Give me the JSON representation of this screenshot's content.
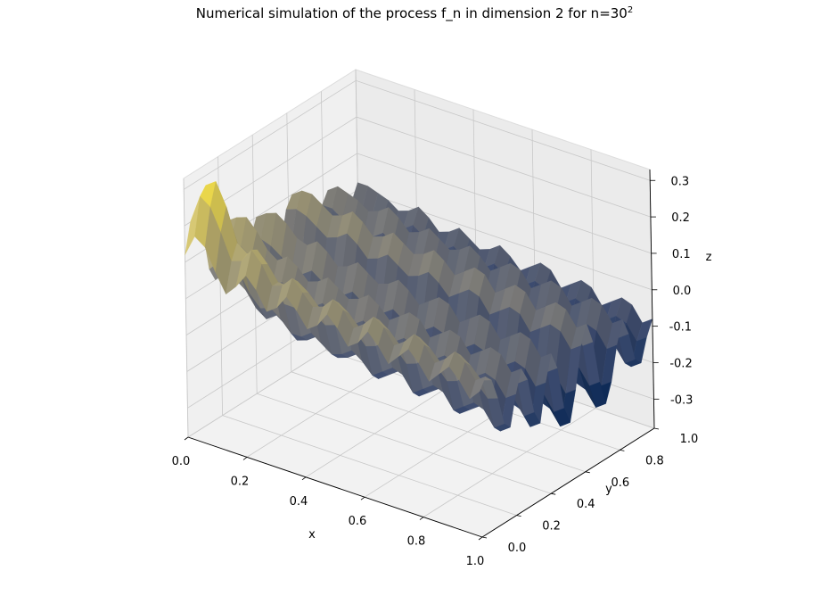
{
  "chart_data": {
    "type": "surface3d",
    "title": "Numerical simulation of the process f_n in dimension 2 for n=30",
    "title_superscript": "2",
    "xlabel": "x",
    "ylabel": "y",
    "zlabel": "z",
    "xlim": [
      0.0,
      1.0
    ],
    "ylim": [
      0.0,
      1.0
    ],
    "zlim": [
      -0.38,
      0.33
    ],
    "xticks": [
      "0.0",
      "0.2",
      "0.4",
      "0.6",
      "0.8",
      "1.0"
    ],
    "yticks": [
      "0.0",
      "0.2",
      "0.4",
      "0.6",
      "0.8",
      "1.0"
    ],
    "zticks": [
      "-0.3",
      "-0.2",
      "-0.1",
      "0.0",
      "0.1",
      "0.2",
      "0.3"
    ],
    "xtick_values": [
      0.0,
      0.2,
      0.4,
      0.6,
      0.8,
      1.0
    ],
    "ytick_values": [
      0.0,
      0.2,
      0.4,
      0.6,
      0.8,
      1.0
    ],
    "ztick_values": [
      -0.3,
      -0.2,
      -0.1,
      0.0,
      0.1,
      0.2,
      0.3
    ],
    "colormap": "cividis",
    "colormap_stops": [
      "#00204d",
      "#3b496c",
      "#7c7b78",
      "#bcaf6f",
      "#ffe945"
    ],
    "grid": true,
    "pane_color": "#f2f2f2",
    "grid_size": 30,
    "z_values": [
      [
        0.12,
        0.2,
        0.23,
        0.16,
        0.04,
        0.0,
        0.08,
        0.14,
        0.09,
        -0.02,
        -0.05,
        0.05,
        0.1,
        0.04,
        -0.06,
        -0.09,
        -0.02,
        0.07,
        0.1,
        0.06,
        -0.04,
        -0.1,
        -0.06,
        0.02,
        0.05,
        0.0,
        -0.06,
        -0.07,
        -0.02,
        0.02
      ],
      [
        0.18,
        0.28,
        0.3,
        0.21,
        0.07,
        0.03,
        0.11,
        0.16,
        0.1,
        -0.02,
        -0.04,
        0.06,
        0.12,
        0.05,
        -0.07,
        -0.1,
        -0.02,
        0.08,
        0.12,
        0.05,
        -0.06,
        -0.13,
        -0.08,
        0.02,
        0.07,
        0.01,
        -0.07,
        -0.09,
        -0.03,
        0.02
      ],
      [
        0.16,
        0.26,
        0.32,
        0.24,
        0.08,
        0.02,
        0.1,
        0.17,
        0.12,
        -0.01,
        -0.05,
        0.05,
        0.13,
        0.07,
        -0.07,
        -0.12,
        -0.04,
        0.07,
        0.12,
        0.06,
        -0.07,
        -0.14,
        -0.09,
        0.0,
        0.06,
        0.01,
        -0.08,
        -0.1,
        -0.04,
        0.01
      ],
      [
        0.1,
        0.2,
        0.26,
        0.19,
        0.06,
        0.0,
        0.08,
        0.14,
        0.1,
        -0.02,
        -0.07,
        0.03,
        0.11,
        0.06,
        -0.08,
        -0.14,
        -0.06,
        0.05,
        0.1,
        0.04,
        -0.08,
        -0.15,
        -0.1,
        -0.01,
        0.05,
        0.0,
        -0.08,
        -0.1,
        -0.04,
        0.0
      ],
      [
        0.05,
        0.13,
        0.17,
        0.11,
        0.01,
        -0.04,
        0.04,
        0.1,
        0.06,
        -0.05,
        -0.1,
        0.0,
        0.08,
        0.03,
        -0.1,
        -0.16,
        -0.08,
        0.03,
        0.08,
        0.02,
        -0.1,
        -0.17,
        -0.12,
        -0.03,
        0.03,
        -0.02,
        -0.1,
        -0.12,
        -0.06,
        -0.02
      ],
      [
        0.08,
        0.14,
        0.15,
        0.08,
        -0.02,
        -0.06,
        0.02,
        0.08,
        0.04,
        -0.06,
        -0.1,
        0.0,
        0.07,
        0.02,
        -0.1,
        -0.15,
        -0.07,
        0.04,
        0.09,
        0.03,
        -0.09,
        -0.16,
        -0.11,
        -0.02,
        0.04,
        -0.01,
        -0.09,
        -0.11,
        -0.05,
        -0.01
      ],
      [
        0.12,
        0.18,
        0.17,
        0.09,
        -0.01,
        -0.04,
        0.04,
        0.1,
        0.06,
        -0.04,
        -0.08,
        0.02,
        0.09,
        0.04,
        -0.08,
        -0.13,
        -0.05,
        0.06,
        0.11,
        0.05,
        -0.07,
        -0.14,
        -0.09,
        0.0,
        0.06,
        0.01,
        -0.07,
        -0.09,
        -0.03,
        0.01
      ],
      [
        0.09,
        0.15,
        0.14,
        0.07,
        -0.03,
        -0.06,
        0.02,
        0.08,
        0.04,
        -0.06,
        -0.1,
        0.0,
        0.07,
        0.02,
        -0.1,
        -0.15,
        -0.07,
        0.04,
        0.09,
        0.03,
        -0.09,
        -0.16,
        -0.11,
        -0.02,
        0.04,
        -0.01,
        -0.09,
        -0.11,
        -0.05,
        -0.01
      ],
      [
        0.04,
        0.1,
        0.1,
        0.03,
        -0.06,
        -0.09,
        -0.01,
        0.05,
        0.01,
        -0.09,
        -0.13,
        -0.03,
        0.04,
        -0.01,
        -0.13,
        -0.18,
        -0.1,
        0.01,
        0.06,
        0.0,
        -0.12,
        -0.19,
        -0.14,
        -0.05,
        0.01,
        -0.04,
        -0.12,
        -0.14,
        -0.08,
        -0.04
      ],
      [
        0.06,
        0.11,
        0.1,
        0.03,
        -0.06,
        -0.08,
        0.0,
        0.06,
        0.02,
        -0.08,
        -0.12,
        -0.02,
        0.05,
        0.0,
        -0.12,
        -0.17,
        -0.09,
        0.02,
        0.07,
        0.01,
        -0.11,
        -0.18,
        -0.13,
        -0.04,
        0.02,
        -0.03,
        -0.11,
        -0.13,
        -0.07,
        -0.03
      ],
      [
        0.1,
        0.14,
        0.12,
        0.05,
        -0.04,
        -0.06,
        0.02,
        0.08,
        0.04,
        -0.06,
        -0.1,
        0.0,
        0.07,
        0.02,
        -0.1,
        -0.15,
        -0.07,
        0.04,
        0.09,
        0.03,
        -0.09,
        -0.16,
        -0.11,
        -0.02,
        0.04,
        -0.01,
        -0.09,
        -0.11,
        -0.05,
        -0.01
      ],
      [
        0.07,
        0.11,
        0.1,
        0.03,
        -0.06,
        -0.08,
        0.0,
        0.06,
        0.02,
        -0.08,
        -0.12,
        -0.02,
        0.05,
        0.0,
        -0.12,
        -0.17,
        -0.09,
        0.02,
        0.07,
        0.01,
        -0.11,
        -0.18,
        -0.13,
        -0.04,
        0.02,
        -0.03,
        -0.11,
        -0.13,
        -0.07,
        -0.03
      ],
      [
        0.03,
        0.08,
        0.07,
        0.01,
        -0.08,
        -0.1,
        -0.02,
        0.04,
        0.0,
        -0.1,
        -0.14,
        -0.04,
        0.03,
        -0.02,
        -0.14,
        -0.19,
        -0.11,
        0.0,
        0.05,
        -0.01,
        -0.13,
        -0.2,
        -0.15,
        -0.06,
        0.0,
        -0.05,
        -0.13,
        -0.15,
        -0.09,
        -0.05
      ],
      [
        0.05,
        0.09,
        0.08,
        0.02,
        -0.07,
        -0.09,
        -0.01,
        0.05,
        0.01,
        -0.09,
        -0.13,
        -0.03,
        0.04,
        -0.01,
        -0.13,
        -0.18,
        -0.1,
        0.01,
        0.06,
        0.0,
        -0.12,
        -0.19,
        -0.14,
        -0.05,
        0.01,
        -0.04,
        -0.12,
        -0.14,
        -0.08,
        -0.04
      ],
      [
        0.09,
        0.12,
        0.1,
        0.04,
        -0.05,
        -0.07,
        0.01,
        0.07,
        0.03,
        -0.07,
        -0.11,
        -0.01,
        0.06,
        0.01,
        -0.11,
        -0.16,
        -0.08,
        0.03,
        0.08,
        0.02,
        -0.1,
        -0.17,
        -0.12,
        -0.03,
        0.03,
        -0.02,
        -0.1,
        -0.12,
        -0.06,
        -0.02
      ],
      [
        0.06,
        0.1,
        0.08,
        0.02,
        -0.07,
        -0.09,
        -0.01,
        0.05,
        0.01,
        -0.09,
        -0.13,
        -0.03,
        0.04,
        -0.01,
        -0.13,
        -0.18,
        -0.1,
        0.01,
        0.06,
        0.0,
        -0.12,
        -0.19,
        -0.14,
        -0.05,
        0.01,
        -0.04,
        -0.12,
        -0.14,
        -0.08,
        -0.04
      ],
      [
        0.02,
        0.06,
        0.05,
        -0.01,
        -0.1,
        -0.12,
        -0.04,
        0.02,
        -0.02,
        -0.12,
        -0.16,
        -0.06,
        0.01,
        -0.04,
        -0.16,
        -0.21,
        -0.13,
        -0.02,
        0.03,
        -0.03,
        -0.15,
        -0.22,
        -0.17,
        -0.08,
        -0.02,
        -0.07,
        -0.15,
        -0.17,
        -0.11,
        -0.07
      ],
      [
        0.04,
        0.08,
        0.06,
        0.0,
        -0.08,
        -0.1,
        -0.02,
        0.04,
        0.0,
        -0.1,
        -0.14,
        -0.04,
        0.03,
        -0.02,
        -0.14,
        -0.19,
        -0.11,
        0.0,
        0.05,
        -0.01,
        -0.13,
        -0.2,
        -0.15,
        -0.06,
        0.0,
        -0.05,
        -0.13,
        -0.15,
        -0.09,
        -0.05
      ],
      [
        0.08,
        0.11,
        0.09,
        0.03,
        -0.06,
        -0.08,
        0.0,
        0.06,
        0.02,
        -0.08,
        -0.12,
        -0.02,
        0.05,
        0.0,
        -0.12,
        -0.17,
        -0.09,
        0.02,
        0.07,
        0.01,
        -0.11,
        -0.18,
        -0.13,
        -0.04,
        0.02,
        -0.03,
        -0.11,
        -0.13,
        -0.07,
        -0.03
      ],
      [
        0.05,
        0.09,
        0.07,
        0.01,
        -0.07,
        -0.09,
        -0.01,
        0.05,
        0.01,
        -0.09,
        -0.13,
        -0.03,
        0.04,
        -0.01,
        -0.13,
        -0.18,
        -0.1,
        0.01,
        0.06,
        0.0,
        -0.12,
        -0.19,
        -0.14,
        -0.05,
        0.01,
        -0.04,
        -0.12,
        -0.14,
        -0.08,
        -0.04
      ],
      [
        0.01,
        0.05,
        0.04,
        -0.02,
        -0.11,
        -0.13,
        -0.05,
        0.01,
        -0.03,
        -0.13,
        -0.17,
        -0.07,
        0.0,
        -0.05,
        -0.17,
        -0.22,
        -0.14,
        -0.03,
        0.02,
        -0.04,
        -0.16,
        -0.23,
        -0.18,
        -0.09,
        -0.03,
        -0.08,
        -0.16,
        -0.18,
        -0.12,
        -0.08
      ],
      [
        0.04,
        0.07,
        0.05,
        -0.01,
        -0.09,
        -0.11,
        -0.03,
        0.03,
        -0.01,
        -0.11,
        -0.15,
        -0.05,
        0.02,
        -0.03,
        -0.15,
        -0.2,
        -0.12,
        -0.01,
        0.04,
        -0.02,
        -0.14,
        -0.21,
        -0.16,
        -0.07,
        -0.01,
        -0.06,
        -0.14,
        -0.16,
        -0.1,
        -0.06
      ],
      [
        0.07,
        0.1,
        0.08,
        0.02,
        -0.07,
        -0.09,
        -0.01,
        0.05,
        0.01,
        -0.09,
        -0.13,
        -0.03,
        0.04,
        -0.01,
        -0.13,
        -0.18,
        -0.1,
        0.01,
        0.06,
        0.0,
        -0.12,
        -0.19,
        -0.14,
        -0.05,
        0.01,
        -0.04,
        -0.12,
        -0.14,
        -0.08,
        -0.04
      ],
      [
        0.04,
        0.08,
        0.06,
        0.0,
        -0.08,
        -0.1,
        -0.02,
        0.04,
        0.0,
        -0.1,
        -0.14,
        -0.04,
        0.03,
        -0.02,
        -0.14,
        -0.19,
        -0.11,
        0.0,
        0.05,
        -0.01,
        -0.13,
        -0.2,
        -0.15,
        -0.06,
        0.0,
        -0.05,
        -0.13,
        -0.15,
        -0.09,
        -0.05
      ],
      [
        0.0,
        0.04,
        0.03,
        -0.03,
        -0.12,
        -0.14,
        -0.06,
        0.0,
        -0.04,
        -0.14,
        -0.18,
        -0.08,
        -0.01,
        -0.06,
        -0.18,
        -0.23,
        -0.15,
        -0.04,
        0.01,
        -0.05,
        -0.17,
        -0.24,
        -0.19,
        -0.1,
        -0.04,
        -0.09,
        -0.17,
        -0.19,
        -0.13,
        -0.09
      ],
      [
        0.03,
        0.06,
        0.04,
        -0.02,
        -0.1,
        -0.12,
        -0.04,
        0.02,
        -0.02,
        -0.12,
        -0.16,
        -0.06,
        0.01,
        -0.04,
        -0.16,
        -0.21,
        -0.13,
        -0.02,
        0.03,
        -0.03,
        -0.15,
        -0.22,
        -0.17,
        -0.08,
        -0.02,
        -0.07,
        -0.15,
        -0.17,
        -0.11,
        -0.07
      ],
      [
        0.06,
        0.09,
        0.07,
        0.01,
        -0.08,
        -0.1,
        -0.02,
        0.04,
        0.0,
        -0.1,
        -0.14,
        -0.04,
        0.03,
        -0.02,
        -0.14,
        -0.19,
        -0.11,
        0.0,
        0.05,
        -0.01,
        -0.13,
        -0.2,
        -0.15,
        -0.06,
        0.0,
        -0.05,
        -0.13,
        -0.15,
        -0.09,
        -0.05
      ],
      [
        0.03,
        0.07,
        0.05,
        -0.01,
        -0.09,
        -0.11,
        -0.03,
        0.03,
        -0.01,
        -0.11,
        -0.15,
        -0.05,
        0.02,
        -0.03,
        -0.15,
        -0.2,
        -0.12,
        -0.01,
        0.04,
        -0.02,
        -0.14,
        -0.21,
        -0.16,
        -0.07,
        -0.01,
        -0.06,
        -0.14,
        -0.16,
        -0.1,
        -0.06
      ],
      [
        -0.01,
        0.03,
        0.02,
        -0.04,
        -0.13,
        -0.15,
        -0.07,
        -0.01,
        -0.05,
        -0.15,
        -0.19,
        -0.09,
        -0.02,
        -0.07,
        -0.19,
        -0.24,
        -0.16,
        -0.05,
        0.0,
        -0.06,
        -0.18,
        -0.25,
        -0.2,
        -0.11,
        -0.05,
        -0.1,
        -0.18,
        -0.2,
        -0.14,
        -0.1
      ],
      [
        0.02,
        0.05,
        0.03,
        -0.03,
        -0.11,
        -0.13,
        -0.05,
        0.01,
        -0.03,
        -0.13,
        -0.17,
        -0.07,
        0.0,
        -0.05,
        -0.17,
        -0.22,
        -0.14,
        -0.03,
        0.02,
        -0.04,
        -0.16,
        -0.23,
        -0.18,
        -0.09,
        -0.03,
        -0.08,
        -0.16,
        -0.18,
        -0.12,
        -0.08
      ]
    ]
  }
}
